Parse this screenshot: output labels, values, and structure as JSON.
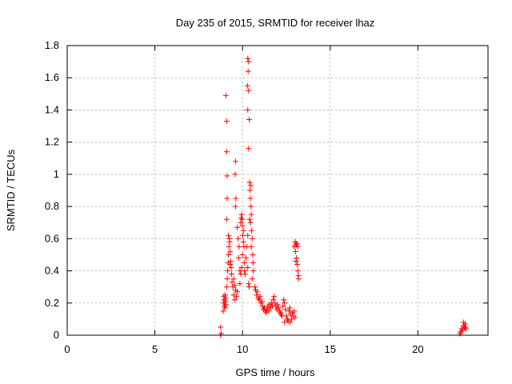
{
  "chart_data": {
    "type": "scatter",
    "title": "Day 235 of 2015, SRMTID for receiver lhaz",
    "xlabel": "GPS time / hours",
    "ylabel": "SRMTID / TECUs",
    "xlim": [
      0,
      24
    ],
    "ylim": [
      0,
      1.8
    ],
    "xticks": [
      0,
      5,
      10,
      15,
      20
    ],
    "xtick_labels": [
      "0",
      "5",
      "10",
      "15",
      "20"
    ],
    "yticks": [
      0,
      0.2,
      0.4,
      0.6,
      0.8,
      1.0,
      1.2,
      1.4,
      1.6,
      1.8
    ],
    "ytick_labels": [
      "0",
      "0.2",
      "0.4",
      "0.6",
      "0.8",
      "1",
      "1.2",
      "1.4",
      "1.6",
      "1.8"
    ],
    "grid": true,
    "marker": "plus",
    "color": "#ff0000",
    "series": [
      {
        "name": "SRMTID",
        "points": [
          [
            8.75,
            0.0
          ],
          [
            8.75,
            0.05
          ],
          [
            8.78,
            0.01
          ],
          [
            8.9,
            0.15
          ],
          [
            8.92,
            0.2
          ],
          [
            8.95,
            0.22
          ],
          [
            8.97,
            0.18
          ],
          [
            9.0,
            0.17
          ],
          [
            9.02,
            0.21
          ],
          [
            9.05,
            0.19
          ],
          [
            8.93,
            0.24
          ],
          [
            9.0,
            0.25
          ],
          [
            9.04,
            0.23
          ],
          [
            9.05,
            1.49
          ],
          [
            9.1,
            1.33
          ],
          [
            9.1,
            1.14
          ],
          [
            9.12,
            0.99
          ],
          [
            9.12,
            0.85
          ],
          [
            9.1,
            0.72
          ],
          [
            9.1,
            0.3
          ],
          [
            9.13,
            0.35
          ],
          [
            9.15,
            0.4
          ],
          [
            9.18,
            0.45
          ],
          [
            9.2,
            0.5
          ],
          [
            9.22,
            0.55
          ],
          [
            9.25,
            0.6
          ],
          [
            9.2,
            0.62
          ],
          [
            9.27,
            0.58
          ],
          [
            9.3,
            0.52
          ],
          [
            9.32,
            0.46
          ],
          [
            9.35,
            0.42
          ],
          [
            9.38,
            0.38
          ],
          [
            9.4,
            0.33
          ],
          [
            9.3,
            0.44
          ],
          [
            9.45,
            0.3
          ],
          [
            9.5,
            0.25
          ],
          [
            9.55,
            0.22
          ],
          [
            9.6,
            0.28
          ],
          [
            9.5,
            0.35
          ],
          [
            9.55,
            0.31
          ],
          [
            9.65,
            0.24
          ],
          [
            9.7,
            0.27
          ],
          [
            9.6,
            1.08
          ],
          [
            9.58,
            1.0
          ],
          [
            9.62,
            0.85
          ],
          [
            9.6,
            0.8
          ],
          [
            9.7,
            0.67
          ],
          [
            9.75,
            0.6
          ],
          [
            9.8,
            0.55
          ],
          [
            9.78,
            0.48
          ],
          [
            9.85,
            0.4
          ],
          [
            9.9,
            0.38
          ],
          [
            9.95,
            0.42
          ],
          [
            9.85,
            0.32
          ],
          [
            9.9,
            0.7
          ],
          [
            9.92,
            0.73
          ],
          [
            9.95,
            0.75
          ],
          [
            9.98,
            0.72
          ],
          [
            10.0,
            0.68
          ],
          [
            10.02,
            0.62
          ],
          [
            10.05,
            0.58
          ],
          [
            10.08,
            0.55
          ],
          [
            10.0,
            0.5
          ],
          [
            10.1,
            0.45
          ],
          [
            10.12,
            0.4
          ],
          [
            10.15,
            0.38
          ],
          [
            10.05,
            0.65
          ],
          [
            10.3,
            1.72
          ],
          [
            10.35,
            1.7
          ],
          [
            10.32,
            1.64
          ],
          [
            10.28,
            1.55
          ],
          [
            10.35,
            1.52
          ],
          [
            10.3,
            1.4
          ],
          [
            10.38,
            1.34
          ],
          [
            10.35,
            1.16
          ],
          [
            10.4,
            0.95
          ],
          [
            10.42,
            0.9
          ],
          [
            10.45,
            0.85
          ],
          [
            10.48,
            0.8
          ],
          [
            10.5,
            0.75
          ],
          [
            10.45,
            0.7
          ],
          [
            10.52,
            0.65
          ],
          [
            10.55,
            0.6
          ],
          [
            10.5,
            0.55
          ],
          [
            10.58,
            0.5
          ],
          [
            10.6,
            0.45
          ],
          [
            10.62,
            0.4
          ],
          [
            10.55,
            0.35
          ],
          [
            10.48,
            0.93
          ],
          [
            10.4,
            0.72
          ],
          [
            10.3,
            0.62
          ],
          [
            10.25,
            0.55
          ],
          [
            10.2,
            0.48
          ],
          [
            10.3,
            0.42
          ],
          [
            10.35,
            0.32
          ],
          [
            10.38,
            0.3
          ],
          [
            10.7,
            0.3
          ],
          [
            10.75,
            0.28
          ],
          [
            10.8,
            0.25
          ],
          [
            10.85,
            0.27
          ],
          [
            10.9,
            0.23
          ],
          [
            10.95,
            0.22
          ],
          [
            11.0,
            0.24
          ],
          [
            11.05,
            0.2
          ],
          [
            11.1,
            0.21
          ],
          [
            11.15,
            0.18
          ],
          [
            11.2,
            0.16
          ],
          [
            11.25,
            0.17
          ],
          [
            11.3,
            0.15
          ],
          [
            11.35,
            0.14
          ],
          [
            11.4,
            0.16
          ],
          [
            11.45,
            0.18
          ],
          [
            11.5,
            0.15
          ],
          [
            11.55,
            0.19
          ],
          [
            11.6,
            0.17
          ],
          [
            11.65,
            0.2
          ],
          [
            11.7,
            0.18
          ],
          [
            11.75,
            0.22
          ],
          [
            11.8,
            0.24
          ],
          [
            11.85,
            0.2
          ],
          [
            11.9,
            0.18
          ],
          [
            11.95,
            0.16
          ],
          [
            12.0,
            0.19
          ],
          [
            12.05,
            0.17
          ],
          [
            12.1,
            0.15
          ],
          [
            12.15,
            0.14
          ],
          [
            12.2,
            0.13
          ],
          [
            12.25,
            0.12
          ],
          [
            12.3,
            0.18
          ],
          [
            12.35,
            0.22
          ],
          [
            12.4,
            0.2
          ],
          [
            12.45,
            0.16
          ],
          [
            12.5,
            0.12
          ],
          [
            12.55,
            0.1
          ],
          [
            12.6,
            0.09
          ],
          [
            12.65,
            0.15
          ],
          [
            12.7,
            0.17
          ],
          [
            12.75,
            0.13
          ],
          [
            12.8,
            0.1
          ],
          [
            12.85,
            0.14
          ],
          [
            12.9,
            0.12
          ],
          [
            12.95,
            0.15
          ],
          [
            13.0,
            0.11
          ],
          [
            12.4,
            0.08
          ],
          [
            12.7,
            0.08
          ],
          [
            12.95,
            0.55
          ],
          [
            13.0,
            0.58
          ],
          [
            13.05,
            0.56
          ],
          [
            13.1,
            0.57
          ],
          [
            13.15,
            0.55
          ],
          [
            13.02,
            0.52
          ],
          [
            13.08,
            0.48
          ],
          [
            13.12,
            0.44
          ],
          [
            13.15,
            0.4
          ],
          [
            13.18,
            0.37
          ],
          [
            13.2,
            0.35
          ],
          [
            13.05,
            0.46
          ],
          [
            22.4,
            0.01
          ],
          [
            22.45,
            0.02
          ],
          [
            22.5,
            0.04
          ],
          [
            22.55,
            0.03
          ],
          [
            22.6,
            0.06
          ],
          [
            22.65,
            0.05
          ],
          [
            22.7,
            0.07
          ],
          [
            22.75,
            0.04
          ],
          [
            22.6,
            0.08
          ],
          [
            22.7,
            0.05
          ]
        ]
      }
    ]
  }
}
